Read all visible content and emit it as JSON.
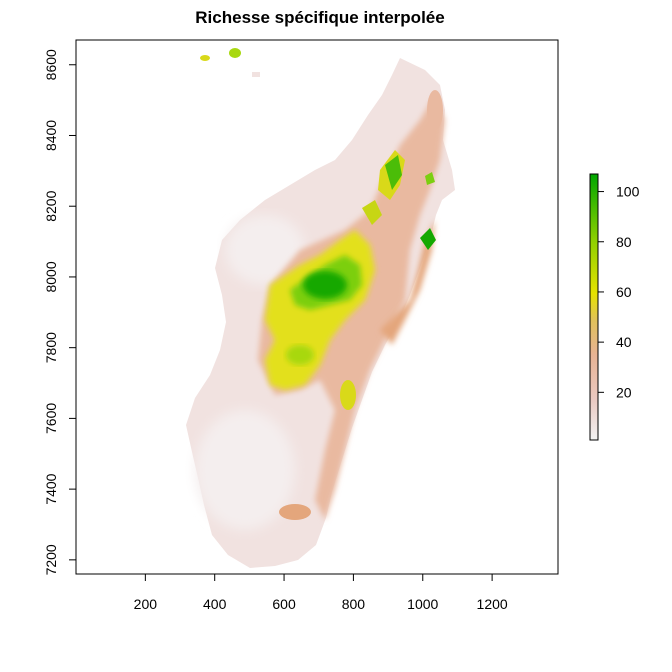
{
  "map": {
    "title": "Richesse spécifique interpolée",
    "x_axis": {
      "ticks": [
        200,
        400,
        600,
        800,
        1000,
        1200
      ],
      "range": [
        0,
        1390
      ]
    },
    "y_axis": {
      "ticks": [
        7200,
        7400,
        7600,
        7800,
        8000,
        8200,
        8400,
        8600
      ],
      "range": [
        7160,
        8670
      ]
    },
    "legend": {
      "ticks": [
        20,
        40,
        60,
        80,
        100
      ],
      "range": [
        1,
        107
      ],
      "colors": [
        "#f2f2f2",
        "#eac9c2",
        "#e8b394",
        "#e0c15a",
        "#e6e200",
        "#8ed000",
        "#00a600"
      ]
    },
    "region_colors": {
      "land_base": "#f1e2e0",
      "low": "#eecdc4",
      "mid": "#e6aa86",
      "high_yellow": "#e3e01a",
      "green": "#7ccf10",
      "dark_green": "#14a800"
    }
  }
}
